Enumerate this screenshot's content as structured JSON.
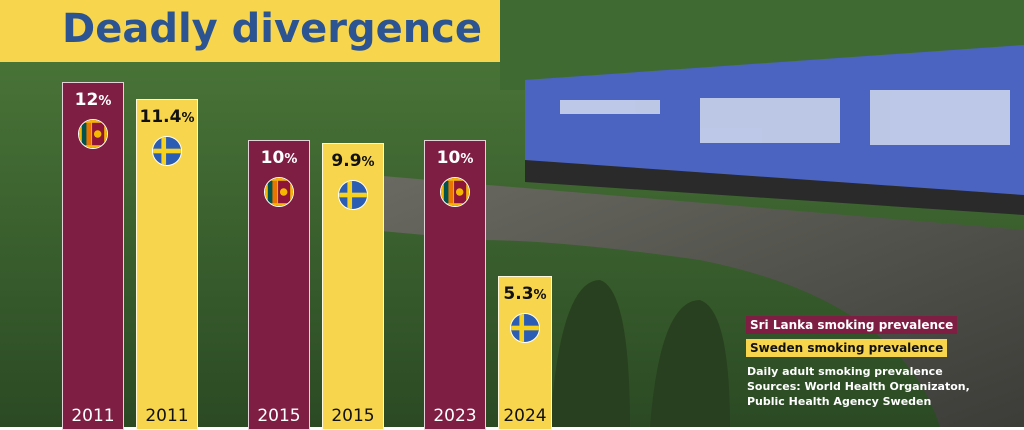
{
  "chart_data": {
    "type": "bar",
    "title": "Deadly divergence",
    "ylabel": "",
    "xlabel": "",
    "ylim": [
      0,
      15
    ],
    "grid": false,
    "legend_placement": "bottom-right",
    "series": [
      {
        "name": "Sri Lanka smoking prevalence",
        "color": "#7e1e42",
        "flag": "sri-lanka-flag-icon"
      },
      {
        "name": "Sweden smoking prevalence",
        "color": "#f7d64d",
        "flag": "sweden-flag-icon"
      }
    ],
    "bars": [
      {
        "series": 0,
        "year": "2011",
        "value": 12,
        "label": "12",
        "unit": "%"
      },
      {
        "series": 1,
        "year": "2011",
        "value": 11.4,
        "label": "11.4",
        "unit": "%"
      },
      {
        "series": 0,
        "year": "2015",
        "value": 10,
        "label": "10",
        "unit": "%"
      },
      {
        "series": 1,
        "year": "2015",
        "value": 9.9,
        "label": "9.9",
        "unit": "%"
      },
      {
        "series": 0,
        "year": "2023",
        "value": 10,
        "label": "10",
        "unit": "%"
      },
      {
        "series": 1,
        "year": "2024",
        "value": 5.3,
        "label": "5.3",
        "unit": "%"
      }
    ],
    "notes": [
      "Daily adult smoking prevalence",
      "Sources: World Health Organizaton,",
      "Public Health Agency Sweden"
    ]
  }
}
